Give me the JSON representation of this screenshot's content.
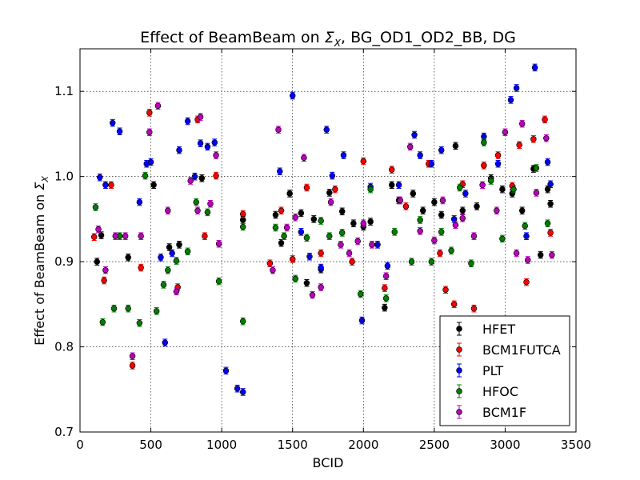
{
  "chart_data": {
    "type": "scatter",
    "title_main": "Effect of BeamBeam on ",
    "title_symbol": "Σ",
    "title_subscript": "X",
    "title_rest": ", BG_OD1_OD2_BB, DG",
    "xlabel": "BCID",
    "ylabel_main": "Effect of BeamBeam on ",
    "ylabel_symbol": "Σ",
    "ylabel_subscript": "X",
    "xlim": [
      0,
      3500
    ],
    "ylim": [
      0.7,
      1.15
    ],
    "xticks": [
      0,
      500,
      1000,
      1500,
      2000,
      2500,
      3000,
      3500
    ],
    "yticks": [
      0.7,
      0.8,
      0.9,
      1.0,
      1.1
    ],
    "ytick_labels": [
      "0.7",
      "0.8",
      "0.9",
      "1.0",
      "1.1"
    ],
    "grid": true,
    "legend_position": "lower-right",
    "error_bar": 0.004,
    "series": [
      {
        "name": "HFET",
        "color": "#000000",
        "points": [
          [
            120,
            0.9
          ],
          [
            150,
            0.931
          ],
          [
            340,
            0.905
          ],
          [
            520,
            0.99
          ],
          [
            630,
            0.917
          ],
          [
            700,
            0.92
          ],
          [
            860,
            0.998
          ],
          [
            1150,
            0.949
          ],
          [
            1380,
            0.955
          ],
          [
            1420,
            0.922
          ],
          [
            1480,
            0.98
          ],
          [
            1560,
            0.957
          ],
          [
            1600,
            0.875
          ],
          [
            1650,
            0.95
          ],
          [
            1700,
            0.891
          ],
          [
            1760,
            0.981
          ],
          [
            1850,
            0.959
          ],
          [
            1930,
            0.945
          ],
          [
            2000,
            0.941
          ],
          [
            2050,
            0.947
          ],
          [
            2150,
            0.846
          ],
          [
            2200,
            0.99
          ],
          [
            2250,
            0.972
          ],
          [
            2350,
            0.98
          ],
          [
            2420,
            0.96
          ],
          [
            2500,
            0.97
          ],
          [
            2550,
            0.955
          ],
          [
            2650,
            1.036
          ],
          [
            2700,
            0.96
          ],
          [
            2800,
            0.965
          ],
          [
            2900,
            0.998
          ],
          [
            2980,
            0.985
          ],
          [
            3050,
            0.98
          ],
          [
            3120,
            0.96
          ],
          [
            3200,
            1.009
          ],
          [
            3250,
            0.908
          ],
          [
            3300,
            0.985
          ],
          [
            3320,
            0.968
          ]
        ]
      },
      {
        "name": "BCM1FUTCA",
        "color": "#ff0000",
        "points": [
          [
            100,
            0.929
          ],
          [
            170,
            0.878
          ],
          [
            220,
            0.99
          ],
          [
            370,
            0.778
          ],
          [
            430,
            0.893
          ],
          [
            490,
            1.075
          ],
          [
            690,
            0.87
          ],
          [
            830,
            1.067
          ],
          [
            880,
            0.93
          ],
          [
            960,
            1.001
          ],
          [
            1150,
            0.956
          ],
          [
            1340,
            0.898
          ],
          [
            1420,
            0.96
          ],
          [
            1500,
            0.903
          ],
          [
            1600,
            0.987
          ],
          [
            1700,
            0.91
          ],
          [
            1800,
            0.985
          ],
          [
            1920,
            0.9
          ],
          [
            2000,
            1.018
          ],
          [
            2150,
            0.869
          ],
          [
            2200,
            1.008
          ],
          [
            2300,
            0.965
          ],
          [
            2460,
            1.015
          ],
          [
            2540,
            0.91
          ],
          [
            2580,
            0.867
          ],
          [
            2640,
            0.85
          ],
          [
            2700,
            0.991
          ],
          [
            2780,
            0.845
          ],
          [
            2850,
            1.013
          ],
          [
            2950,
            1.025
          ],
          [
            3050,
            0.989
          ],
          [
            3100,
            1.037
          ],
          [
            3150,
            0.876
          ],
          [
            3200,
            1.044
          ],
          [
            3280,
            1.067
          ],
          [
            3320,
            0.934
          ]
        ]
      },
      {
        "name": "PLT",
        "color": "#0000ff",
        "points": [
          [
            140,
            0.999
          ],
          [
            180,
            0.99
          ],
          [
            230,
            1.063
          ],
          [
            280,
            1.053
          ],
          [
            420,
            0.97
          ],
          [
            470,
            1.015
          ],
          [
            500,
            1.017
          ],
          [
            570,
            0.905
          ],
          [
            600,
            0.805
          ],
          [
            650,
            0.91
          ],
          [
            700,
            1.031
          ],
          [
            760,
            1.065
          ],
          [
            810,
            1.0
          ],
          [
            850,
            1.039
          ],
          [
            900,
            1.035
          ],
          [
            950,
            1.04
          ],
          [
            1030,
            0.772
          ],
          [
            1110,
            0.751
          ],
          [
            1150,
            0.747
          ],
          [
            1410,
            1.006
          ],
          [
            1500,
            1.095
          ],
          [
            1560,
            0.935
          ],
          [
            1620,
            0.906
          ],
          [
            1700,
            0.893
          ],
          [
            1740,
            1.055
          ],
          [
            1780,
            1.001
          ],
          [
            1860,
            1.025
          ],
          [
            1990,
            0.831
          ],
          [
            2050,
            0.988
          ],
          [
            2100,
            0.92
          ],
          [
            2170,
            0.895
          ],
          [
            2250,
            0.99
          ],
          [
            2360,
            1.049
          ],
          [
            2400,
            1.025
          ],
          [
            2480,
            1.015
          ],
          [
            2550,
            1.031
          ],
          [
            2640,
            0.95
          ],
          [
            2720,
            0.98
          ],
          [
            2850,
            1.047
          ],
          [
            2950,
            1.015
          ],
          [
            3040,
            1.09
          ],
          [
            3080,
            1.104
          ],
          [
            3150,
            0.93
          ],
          [
            3210,
            1.128
          ],
          [
            3300,
            1.017
          ],
          [
            3320,
            0.991
          ]
        ]
      },
      {
        "name": "HFOC",
        "color": "#008000",
        "points": [
          [
            110,
            0.964
          ],
          [
            160,
            0.829
          ],
          [
            240,
            0.845
          ],
          [
            280,
            0.93
          ],
          [
            340,
            0.845
          ],
          [
            420,
            0.828
          ],
          [
            460,
            1.001
          ],
          [
            540,
            0.842
          ],
          [
            590,
            0.873
          ],
          [
            620,
            0.89
          ],
          [
            680,
            0.901
          ],
          [
            760,
            0.912
          ],
          [
            820,
            0.97
          ],
          [
            900,
            0.958
          ],
          [
            980,
            0.877
          ],
          [
            1150,
            0.83
          ],
          [
            1150,
            0.941
          ],
          [
            1380,
            0.94
          ],
          [
            1440,
            0.93
          ],
          [
            1520,
            0.88
          ],
          [
            1600,
            0.928
          ],
          [
            1700,
            0.948
          ],
          [
            1760,
            0.93
          ],
          [
            1850,
            0.934
          ],
          [
            1980,
            0.862
          ],
          [
            2050,
            0.985
          ],
          [
            2160,
            0.857
          ],
          [
            2220,
            0.935
          ],
          [
            2340,
            0.9
          ],
          [
            2400,
            0.949
          ],
          [
            2480,
            0.9
          ],
          [
            2550,
            0.935
          ],
          [
            2620,
            0.913
          ],
          [
            2680,
            0.987
          ],
          [
            2760,
            0.898
          ],
          [
            2850,
            1.04
          ],
          [
            2900,
            0.995
          ],
          [
            2980,
            0.927
          ],
          [
            3060,
            0.985
          ],
          [
            3140,
            0.942
          ],
          [
            3220,
            1.01
          ],
          [
            3300,
            0.945
          ]
        ]
      },
      {
        "name": "BCM1F",
        "color": "#bf00bf",
        "points": [
          [
            130,
            0.938
          ],
          [
            180,
            0.89
          ],
          [
            250,
            0.93
          ],
          [
            320,
            0.93
          ],
          [
            370,
            0.789
          ],
          [
            430,
            0.93
          ],
          [
            490,
            1.052
          ],
          [
            550,
            1.083
          ],
          [
            620,
            0.96
          ],
          [
            680,
            0.865
          ],
          [
            780,
            0.995
          ],
          [
            830,
            0.96
          ],
          [
            850,
            1.07
          ],
          [
            920,
            0.968
          ],
          [
            960,
            1.025
          ],
          [
            980,
            0.921
          ],
          [
            1360,
            0.89
          ],
          [
            1400,
            1.055
          ],
          [
            1460,
            0.94
          ],
          [
            1520,
            0.952
          ],
          [
            1580,
            1.022
          ],
          [
            1640,
            0.861
          ],
          [
            1700,
            0.87
          ],
          [
            1770,
            0.97
          ],
          [
            1840,
            0.92
          ],
          [
            1900,
            0.91
          ],
          [
            1960,
            0.924
          ],
          [
            2000,
            0.945
          ],
          [
            2060,
            0.92
          ],
          [
            2160,
            0.883
          ],
          [
            2260,
            0.972
          ],
          [
            2330,
            1.035
          ],
          [
            2400,
            0.936
          ],
          [
            2500,
            0.925
          ],
          [
            2560,
            0.972
          ],
          [
            2650,
            0.943
          ],
          [
            2700,
            0.951
          ],
          [
            2780,
            0.93
          ],
          [
            2840,
            0.99
          ],
          [
            2940,
            0.96
          ],
          [
            3000,
            1.052
          ],
          [
            3080,
            0.91
          ],
          [
            3120,
            1.062
          ],
          [
            3160,
            0.902
          ],
          [
            3220,
            0.981
          ],
          [
            3290,
            1.045
          ],
          [
            3330,
            0.908
          ]
        ]
      }
    ]
  }
}
